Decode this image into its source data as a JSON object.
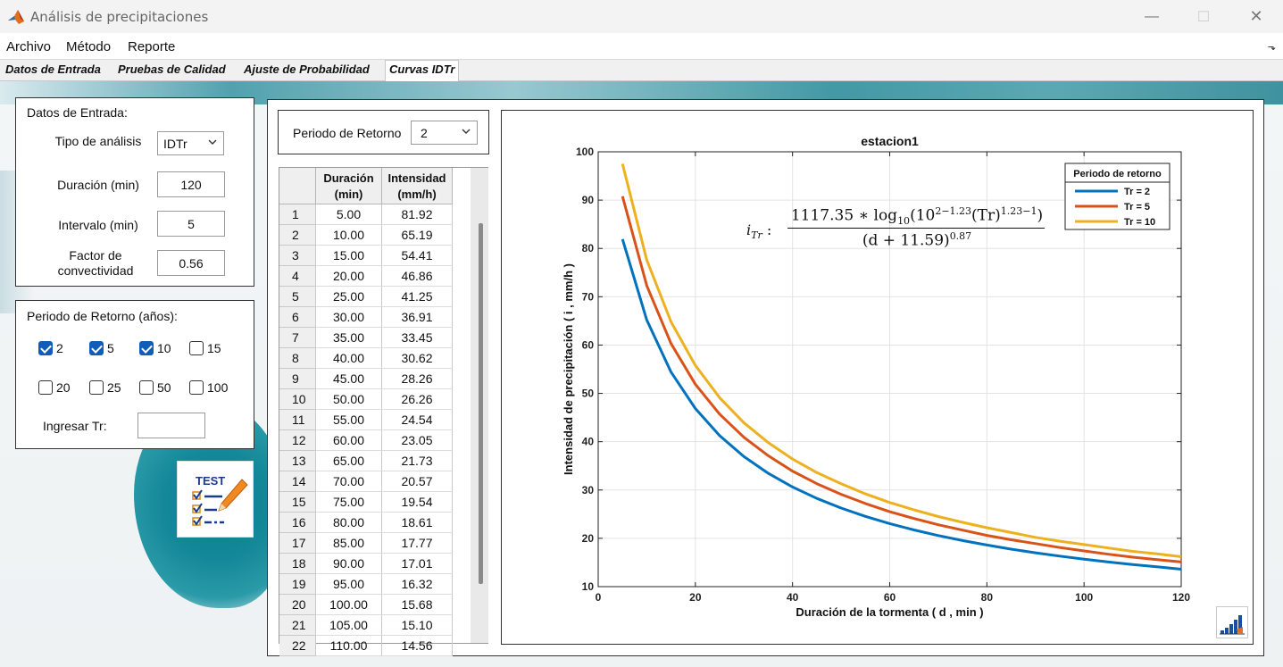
{
  "window": {
    "title": "Análisis de precipitaciones",
    "controls": [
      "—",
      "☐",
      "✕"
    ]
  },
  "menu": [
    "Archivo",
    "Método",
    "Reporte"
  ],
  "tabs": [
    "Datos de Entrada",
    "Pruebas de Calidad",
    "Ajuste de Probabilidad",
    "Curvas IDTr"
  ],
  "active_tab": "Curvas IDTr",
  "inputs_panel": {
    "title": "Datos de Entrada:",
    "tipo_label": "Tipo de análisis",
    "tipo_value": "IDTr",
    "duracion_label": "Duración (min)",
    "duracion_value": "120",
    "intervalo_label": "Intervalo (min)",
    "intervalo_value": "5",
    "factor_label_1": "Factor de",
    "factor_label_2": "convectividad",
    "factor_value": "0.56"
  },
  "return_panel": {
    "title": "Periodo de Retorno (años):",
    "options": [
      {
        "label": "2",
        "checked": true
      },
      {
        "label": "5",
        "checked": true
      },
      {
        "label": "10",
        "checked": true
      },
      {
        "label": "15",
        "checked": false
      },
      {
        "label": "20",
        "checked": false
      },
      {
        "label": "25",
        "checked": false
      },
      {
        "label": "50",
        "checked": false
      },
      {
        "label": "100",
        "checked": false
      }
    ],
    "ingresar_label": "Ingresar Tr:",
    "ingresar_value": ""
  },
  "badge_text": "TEST",
  "selector": {
    "label": "Periodo de Retorno",
    "value": "2"
  },
  "table": {
    "headers": [
      [
        "Duración",
        "(min)"
      ],
      [
        "Intensidad",
        "(mm/h)"
      ]
    ],
    "rows": [
      [
        "1",
        "5.00",
        "81.92"
      ],
      [
        "2",
        "10.00",
        "65.19"
      ],
      [
        "3",
        "15.00",
        "54.41"
      ],
      [
        "4",
        "20.00",
        "46.86"
      ],
      [
        "5",
        "25.00",
        "41.25"
      ],
      [
        "6",
        "30.00",
        "36.91"
      ],
      [
        "7",
        "35.00",
        "33.45"
      ],
      [
        "8",
        "40.00",
        "30.62"
      ],
      [
        "9",
        "45.00",
        "28.26"
      ],
      [
        "10",
        "50.00",
        "26.26"
      ],
      [
        "11",
        "55.00",
        "24.54"
      ],
      [
        "12",
        "60.00",
        "23.05"
      ],
      [
        "13",
        "65.00",
        "21.73"
      ],
      [
        "14",
        "70.00",
        "20.57"
      ],
      [
        "15",
        "75.00",
        "19.54"
      ],
      [
        "16",
        "80.00",
        "18.61"
      ],
      [
        "17",
        "85.00",
        "17.77"
      ],
      [
        "18",
        "90.00",
        "17.01"
      ],
      [
        "19",
        "95.00",
        "16.32"
      ],
      [
        "20",
        "100.00",
        "15.68"
      ],
      [
        "21",
        "105.00",
        "15.10"
      ],
      [
        "22",
        "110.00",
        "14.56"
      ]
    ]
  },
  "formula": {
    "lhs": "i",
    "lhs_sub": "Tr",
    "colon": ":",
    "num_coef": "1117.35 ∗ log",
    "num_log_sub": "10",
    "num_base": "(10",
    "num_exp1": "2−1.23",
    "num_mid": "(Tr)",
    "num_exp2": "1.23−1",
    "num_end": ")",
    "den_base": "(d + 11.59)",
    "den_exp": "0.87"
  },
  "chart_data": {
    "type": "line",
    "title": "estacion1",
    "xlabel": "Duración de la tormenta ( d , min )",
    "ylabel": "Intensidad de precipitación ( i , mm/h )",
    "xlim": [
      0,
      120
    ],
    "ylim": [
      10,
      100
    ],
    "xticks": [
      0,
      20,
      40,
      60,
      80,
      100,
      120
    ],
    "yticks": [
      10,
      20,
      30,
      40,
      50,
      60,
      70,
      80,
      90,
      100
    ],
    "grid": true,
    "legend_title": "Periodo de retorno",
    "legend_position": "top-right",
    "x": [
      5,
      10,
      15,
      20,
      25,
      30,
      35,
      40,
      45,
      50,
      55,
      60,
      65,
      70,
      75,
      80,
      85,
      90,
      95,
      100,
      105,
      110,
      115,
      120
    ],
    "series": [
      {
        "name": "Tr = 2",
        "color": "#0072BD",
        "values": [
          81.92,
          65.19,
          54.41,
          46.86,
          41.25,
          36.91,
          33.45,
          30.62,
          28.26,
          26.26,
          24.54,
          23.05,
          21.73,
          20.57,
          19.54,
          18.61,
          17.77,
          17.01,
          16.32,
          15.68,
          15.1,
          14.56,
          14.1,
          13.6
        ]
      },
      {
        "name": "Tr = 5",
        "color": "#D95319",
        "values": [
          90.8,
          72.3,
          60.3,
          51.9,
          45.7,
          40.9,
          37.1,
          33.9,
          31.3,
          29.1,
          27.2,
          25.5,
          24.1,
          22.8,
          21.7,
          20.6,
          19.7,
          18.9,
          18.1,
          17.4,
          16.7,
          16.1,
          15.6,
          15.1
        ]
      },
      {
        "name": "Tr = 10",
        "color": "#EDB120",
        "values": [
          97.5,
          77.6,
          64.8,
          55.8,
          49.1,
          43.9,
          39.8,
          36.4,
          33.6,
          31.3,
          29.2,
          27.4,
          25.9,
          24.5,
          23.3,
          22.2,
          21.2,
          20.2,
          19.4,
          18.7,
          18.0,
          17.3,
          16.8,
          16.2
        ]
      }
    ]
  }
}
